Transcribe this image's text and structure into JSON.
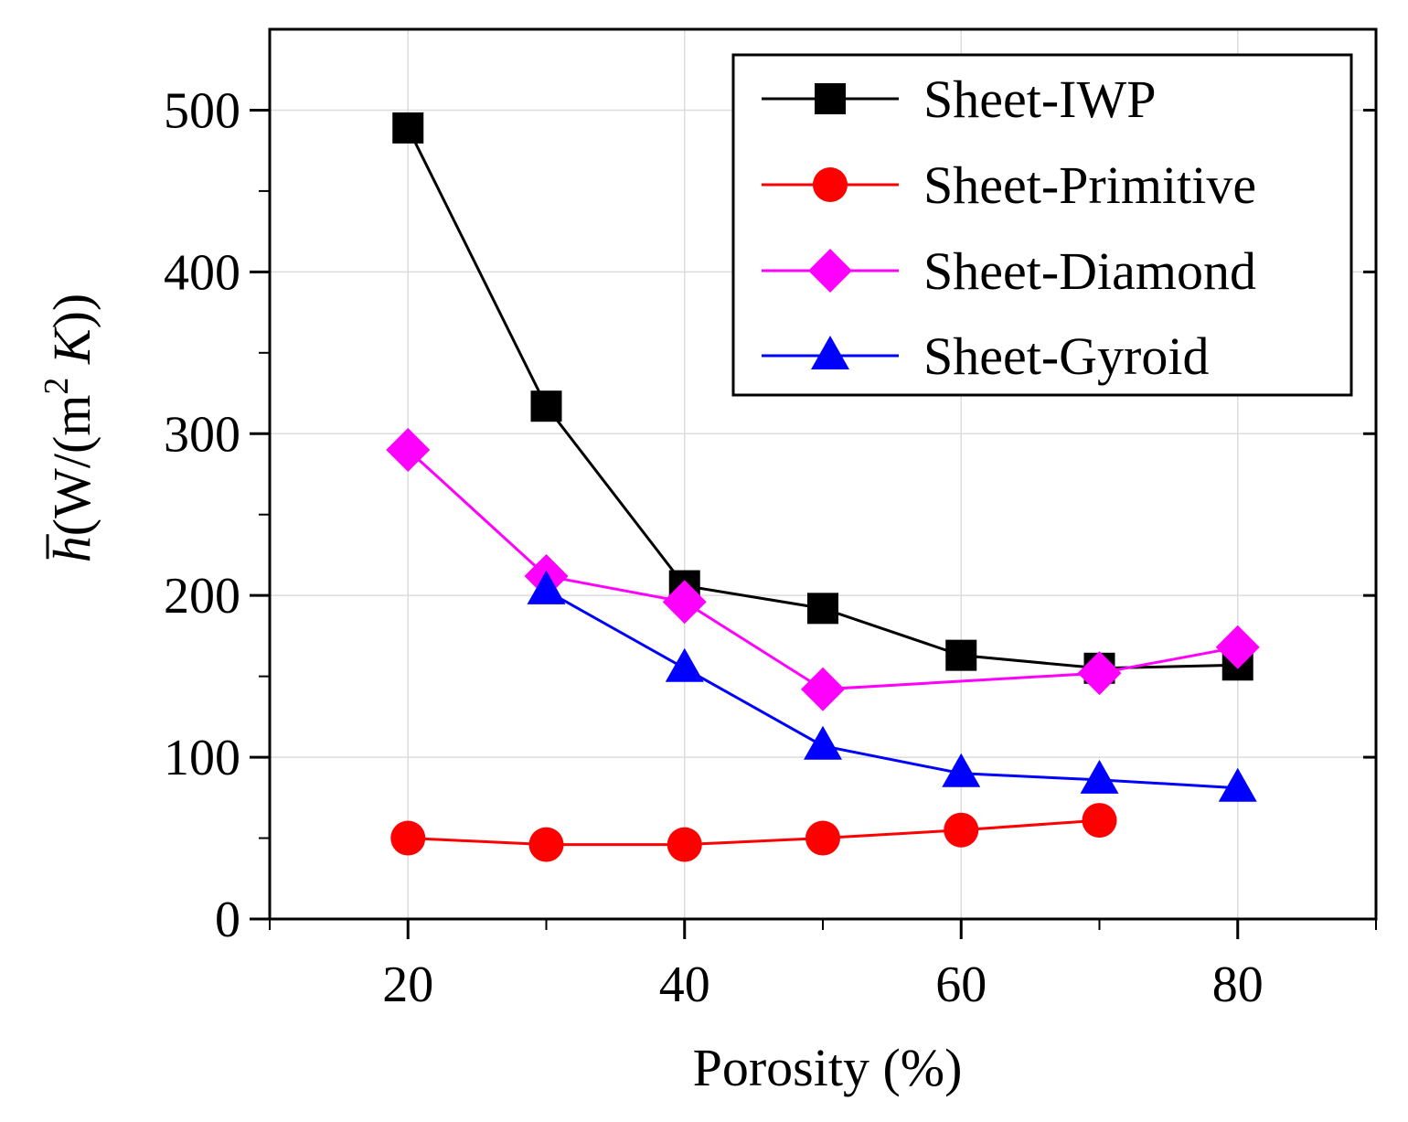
{
  "chart_data": {
    "type": "line",
    "title": "",
    "xlabel": "Porosity (%)",
    "ylabel": {
      "symbol": "h",
      "unit_prefix": "(W/(m",
      "exponent": "2",
      "unit_k": " K",
      "unit_suffix": "))"
    },
    "xlim": [
      10,
      90
    ],
    "ylim": [
      0,
      550
    ],
    "xticks": [
      20,
      40,
      60,
      80
    ],
    "xtick_labels": [
      "20",
      "40",
      "60",
      "80"
    ],
    "yticks": [
      0,
      100,
      200,
      300,
      400,
      500
    ],
    "ytick_labels": [
      "0",
      "100",
      "200",
      "300",
      "400",
      "500"
    ],
    "grid": true,
    "legend_position": "top-right",
    "series": [
      {
        "name": "Sheet-IWP",
        "color": "#000000",
        "marker": "square",
        "x": [
          20,
          30,
          40,
          50,
          60,
          70,
          80
        ],
        "y": [
          489,
          317,
          206,
          192,
          163,
          155,
          157
        ]
      },
      {
        "name": "Sheet-Primitive",
        "color": "#ff0000",
        "marker": "circle",
        "x": [
          20,
          30,
          40,
          50,
          60,
          70
        ],
        "y": [
          50,
          46,
          46,
          50,
          55,
          61
        ]
      },
      {
        "name": "Sheet-Diamond",
        "color": "#ff00ff",
        "marker": "diamond",
        "x": [
          20,
          30,
          40,
          50,
          70,
          80
        ],
        "y": [
          290,
          212,
          196,
          142,
          152,
          168
        ]
      },
      {
        "name": "Sheet-Gyroid",
        "color": "#0000ff",
        "marker": "triangle",
        "x": [
          30,
          40,
          50,
          60,
          70,
          80
        ],
        "y": [
          203,
          155,
          107,
          90,
          86,
          81
        ]
      }
    ]
  }
}
